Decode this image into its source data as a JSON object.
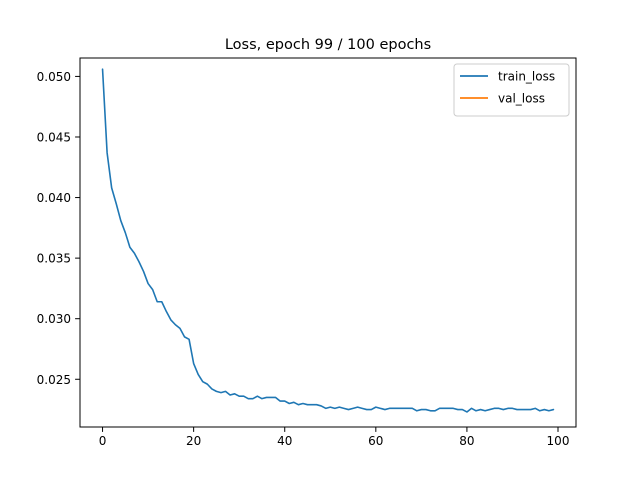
{
  "chart_data": {
    "type": "line",
    "title": "Loss, epoch 99 / 100 epochs",
    "xlabel": "",
    "ylabel": "",
    "xlim": [
      -4.95,
      103.95
    ],
    "ylim": [
      0.02106,
      0.05152
    ],
    "xticks": [
      0,
      20,
      40,
      60,
      80,
      100
    ],
    "yticks": [
      0.025,
      0.03,
      0.035,
      0.04,
      0.045,
      0.05
    ],
    "ytick_labels": [
      "0.025",
      "0.030",
      "0.035",
      "0.040",
      "0.045",
      "0.050"
    ],
    "grid": false,
    "legend_position": "top-right",
    "series": [
      {
        "name": "train_loss",
        "color": "#1f77b4",
        "x": [
          0,
          1,
          2,
          3,
          4,
          5,
          6,
          7,
          8,
          9,
          10,
          11,
          12,
          13,
          14,
          15,
          16,
          17,
          18,
          19,
          20,
          21,
          22,
          23,
          24,
          25,
          26,
          27,
          28,
          29,
          30,
          31,
          32,
          33,
          34,
          35,
          36,
          37,
          38,
          39,
          40,
          41,
          42,
          43,
          44,
          45,
          46,
          47,
          48,
          49,
          50,
          51,
          52,
          53,
          54,
          55,
          56,
          57,
          58,
          59,
          60,
          61,
          62,
          63,
          64,
          65,
          66,
          67,
          68,
          69,
          70,
          71,
          72,
          73,
          74,
          75,
          76,
          77,
          78,
          79,
          80,
          81,
          82,
          83,
          84,
          85,
          86,
          87,
          88,
          89,
          90,
          91,
          92,
          93,
          94,
          95,
          96,
          97,
          98,
          99
        ],
        "y": [
          0.0506,
          0.0437,
          0.0408,
          0.0395,
          0.0381,
          0.0371,
          0.0359,
          0.0354,
          0.0347,
          0.0339,
          0.0329,
          0.0324,
          0.0314,
          0.0314,
          0.0306,
          0.0299,
          0.0295,
          0.0292,
          0.0285,
          0.0283,
          0.0263,
          0.0254,
          0.0248,
          0.0246,
          0.0242,
          0.024,
          0.0239,
          0.024,
          0.0237,
          0.0238,
          0.0236,
          0.0236,
          0.0234,
          0.0234,
          0.0236,
          0.0234,
          0.0235,
          0.0235,
          0.0235,
          0.0232,
          0.0232,
          0.023,
          0.0231,
          0.0229,
          0.023,
          0.0229,
          0.0229,
          0.0229,
          0.0228,
          0.0226,
          0.0227,
          0.0226,
          0.0227,
          0.0226,
          0.0225,
          0.0226,
          0.0227,
          0.0226,
          0.0225,
          0.0225,
          0.0227,
          0.0226,
          0.0225,
          0.0226,
          0.0226,
          0.0226,
          0.0226,
          0.0226,
          0.0226,
          0.0224,
          0.0225,
          0.0225,
          0.0224,
          0.0224,
          0.0226,
          0.0226,
          0.0226,
          0.0226,
          0.0225,
          0.0225,
          0.0223,
          0.0226,
          0.0224,
          0.0225,
          0.0224,
          0.0225,
          0.0226,
          0.0226,
          0.0225,
          0.0226,
          0.0226,
          0.0225,
          0.0225,
          0.0225,
          0.0225,
          0.0226,
          0.0224,
          0.0225,
          0.0224,
          0.0225
        ]
      },
      {
        "name": "val_loss",
        "color": "#ff7f0e",
        "x": [],
        "y": []
      }
    ]
  }
}
